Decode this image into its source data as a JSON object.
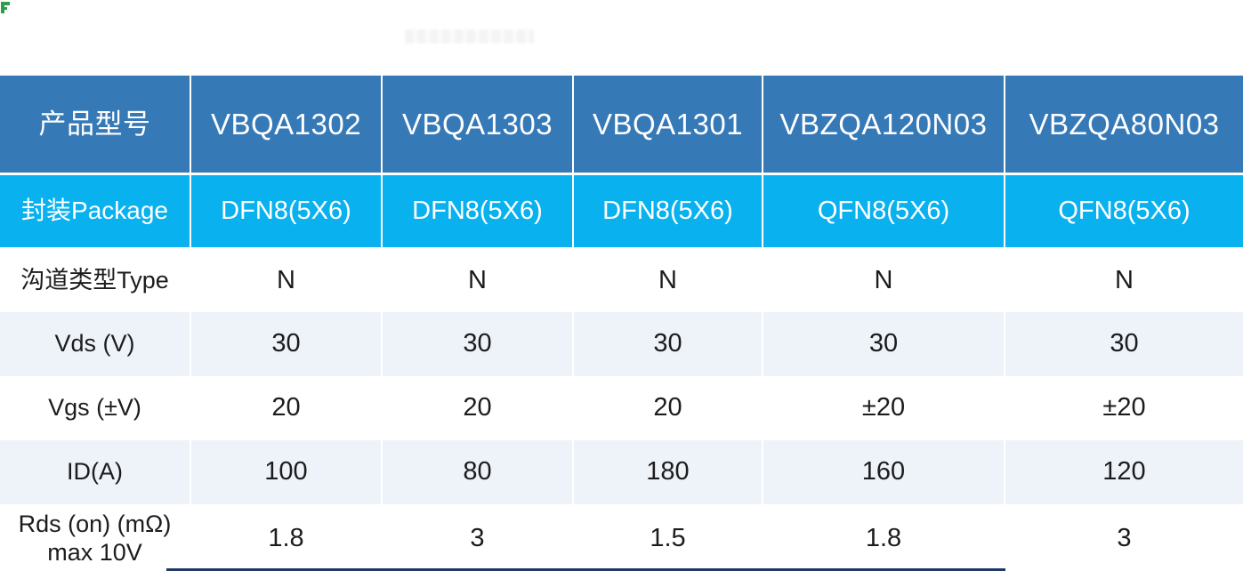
{
  "theme": {
    "header_bg": "#3679b7",
    "subheader_bg": "#0ab1ef",
    "stripe_bg": "#eef3fa",
    "header_text": "#ffffff",
    "body_text": "#1c1c1c",
    "accent_green": "#2f9e49",
    "bottom_line": "#203864"
  },
  "decorations": {
    "green_corner_mark_icon": "green-corner-mark",
    "watermark_note": "illegible faint light-gray text band near top center"
  },
  "table": {
    "header": {
      "cells": [
        "产品型号",
        "VBQA1302",
        "VBQA1303",
        "VBQA1301",
        "VBZQA120N03",
        "VBZQA80N03"
      ]
    },
    "subheader": {
      "cells": [
        "封装Package",
        "DFN8(5X6)",
        "DFN8(5X6)",
        "DFN8(5X6)",
        "QFN8(5X6)",
        "QFN8(5X6)"
      ]
    },
    "rows": [
      {
        "label": "沟道类型Type",
        "values": [
          "N",
          "N",
          "N",
          "N",
          "N"
        ]
      },
      {
        "label": "Vds (V)",
        "values": [
          "30",
          "30",
          "30",
          "30",
          "30"
        ]
      },
      {
        "label": "Vgs (±V)",
        "values": [
          "20",
          "20",
          "20",
          "±20",
          "±20"
        ]
      },
      {
        "label": "ID(A)",
        "values": [
          "100",
          "80",
          "180",
          "160",
          "120"
        ]
      },
      {
        "label": "Rds (on) (mΩ) max 10V",
        "values": [
          "1.8",
          "3",
          "1.5",
          "1.8",
          "3"
        ]
      }
    ]
  }
}
